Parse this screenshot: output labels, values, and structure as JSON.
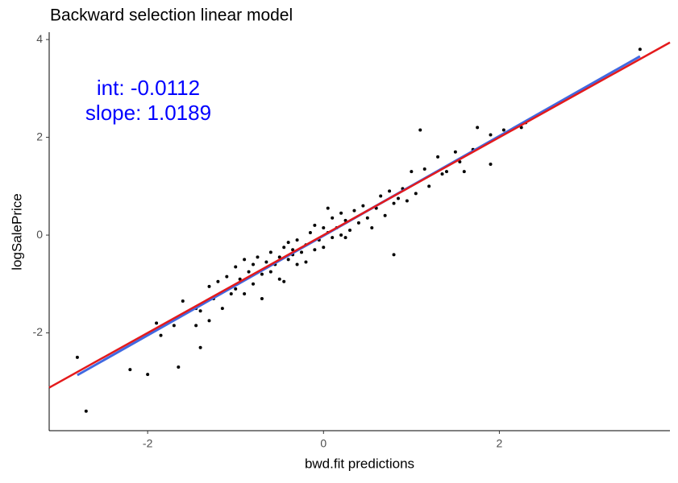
{
  "chart_data": {
    "type": "scatter",
    "title": "Backward selection linear model",
    "x_label": "bwd.fit predictions",
    "y_label": "logSalePrice",
    "annotations": [
      "int: -0.0112",
      "slope: 1.0189"
    ],
    "annotation_color": "#0000ff",
    "xlim": [
      -3.12,
      3.94
    ],
    "ylim": [
      -4.0,
      4.15
    ],
    "xticks": [
      -2,
      0,
      2
    ],
    "yticks": [
      -2,
      0,
      2,
      4
    ],
    "point_color": "#000000",
    "x": [
      -2.8,
      -2.7,
      -2.2,
      -2.0,
      -1.9,
      -1.85,
      -1.7,
      -1.65,
      -1.6,
      -1.45,
      -1.45,
      -1.4,
      -1.4,
      -1.3,
      -1.3,
      -1.25,
      -1.2,
      -1.15,
      -1.1,
      -1.05,
      -1.0,
      -1.0,
      -0.95,
      -0.9,
      -0.9,
      -0.85,
      -0.8,
      -0.8,
      -0.75,
      -0.7,
      -0.7,
      -0.65,
      -0.6,
      -0.6,
      -0.55,
      -0.5,
      -0.5,
      -0.45,
      -0.45,
      -0.4,
      -0.4,
      -0.35,
      -0.35,
      -0.3,
      -0.3,
      -0.25,
      -0.2,
      -0.2,
      -0.15,
      -0.1,
      -0.1,
      -0.05,
      0,
      0,
      0.05,
      0.05,
      0.1,
      0.1,
      0.15,
      0.2,
      0.2,
      0.25,
      0.25,
      0.3,
      0.35,
      0.4,
      0.45,
      0.5,
      0.55,
      0.6,
      0.65,
      0.7,
      0.75,
      0.8,
      0.8,
      0.85,
      0.9,
      0.95,
      1.0,
      1.05,
      1.1,
      1.15,
      1.2,
      1.3,
      1.35,
      1.4,
      1.5,
      1.55,
      1.6,
      1.7,
      1.75,
      1.9,
      1.9,
      2.05,
      2.25,
      2.3,
      3.6
    ],
    "y": [
      -2.5,
      -3.6,
      -2.75,
      -2.85,
      -1.8,
      -2.05,
      -1.85,
      -2.7,
      -1.35,
      -1.5,
      -1.85,
      -1.55,
      -2.3,
      -1.75,
      -1.05,
      -1.3,
      -0.95,
      -1.5,
      -0.85,
      -1.2,
      -0.65,
      -1.1,
      -0.9,
      -1.2,
      -0.5,
      -0.75,
      -0.6,
      -1.0,
      -0.45,
      -0.8,
      -1.3,
      -0.55,
      -0.75,
      -0.35,
      -0.6,
      -0.45,
      -0.9,
      -0.25,
      -0.95,
      -0.5,
      -0.15,
      -0.3,
      -0.4,
      -0.6,
      -0.1,
      -0.35,
      -0.2,
      -0.55,
      0.05,
      -0.3,
      0.2,
      -0.1,
      -0.25,
      0.15,
      0.05,
      0.55,
      -0.05,
      0.35,
      0.15,
      0,
      0.45,
      0.3,
      -0.05,
      0.1,
      0.5,
      0.25,
      0.6,
      0.35,
      0.15,
      0.55,
      0.8,
      0.4,
      0.9,
      -0.4,
      0.65,
      0.75,
      0.95,
      0.7,
      1.3,
      0.85,
      2.15,
      1.35,
      1.0,
      1.6,
      1.25,
      1.3,
      1.7,
      1.5,
      1.3,
      1.75,
      2.2,
      2.05,
      1.45,
      2.15,
      2.2,
      2.3,
      3.8
    ],
    "fit_line": {
      "color": "#4169e1",
      "x": [
        -2.8,
        3.6
      ],
      "y": [
        -2.864,
        3.657
      ]
    },
    "reference_line": {
      "color": "#e41a1c",
      "x": [
        -3.12,
        3.94
      ],
      "y": [
        -3.12,
        3.94
      ]
    }
  }
}
